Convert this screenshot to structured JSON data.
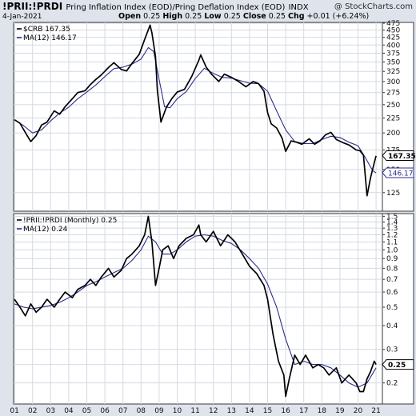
{
  "header": {
    "symbol": "!PRII:!PRDI",
    "description": "Pring Inflation Index (EOD)/Pring Deflation Index (EOD)",
    "exchange": "INDX",
    "copyright": "@ StockCharts.com",
    "date": "4-Jan-2021",
    "open_label": "Open",
    "open": "0.25",
    "high_label": "High",
    "high": "0.25",
    "low_label": "Low",
    "low": "0.25",
    "close_label": "Close",
    "close": "0.25",
    "chg_label": "Chg",
    "chg": "+0.01 (+6.24%)"
  },
  "chart_data": [
    {
      "type": "line",
      "panel": "top",
      "scale": "log",
      "ylim": [
        108,
        478
      ],
      "yticks": [
        125,
        150,
        175,
        200,
        225,
        250,
        275,
        300,
        325,
        350,
        375,
        400,
        425,
        450,
        475
      ],
      "legend": [
        "$CRB 167.35",
        "MA(12) 146.17"
      ],
      "value_tags": [
        {
          "label": "167.35",
          "value": 167.35,
          "style": "dark"
        },
        {
          "label": "146.17",
          "value": 146.17,
          "style": "light"
        }
      ],
      "grid": true,
      "series": [
        {
          "name": "$CRB",
          "color": "#000000",
          "x": [
            2001.0,
            2001.3,
            2001.7,
            2001.9,
            2002.2,
            2002.5,
            2002.8,
            2003.2,
            2003.5,
            2003.8,
            2004.2,
            2004.5,
            2004.9,
            2005.2,
            2005.5,
            2005.8,
            2006.2,
            2006.5,
            2006.9,
            2007.2,
            2007.5,
            2007.9,
            2008.2,
            2008.5,
            2008.6,
            2008.8,
            2008.9,
            2009.1,
            2009.4,
            2009.7,
            2010.0,
            2010.4,
            2010.8,
            2011.2,
            2011.3,
            2011.6,
            2011.9,
            2012.3,
            2012.6,
            2013.0,
            2013.4,
            2013.8,
            2014.2,
            2014.5,
            2014.8,
            2015.0,
            2015.2,
            2015.5,
            2015.8,
            2016.0,
            2016.3,
            2016.6,
            2016.9,
            2017.3,
            2017.6,
            2017.9,
            2018.2,
            2018.5,
            2018.8,
            2019.2,
            2019.5,
            2019.9,
            2020.1,
            2020.3,
            2020.5,
            2020.7,
            2020.9,
            2021.0
          ],
          "y": [
            222,
            216,
            196,
            187,
            196,
            213,
            218,
            238,
            232,
            246,
            262,
            275,
            279,
            293,
            305,
            316,
            335,
            348,
            330,
            326,
            346,
            372,
            418,
            468,
            440,
            365,
            280,
            218,
            245,
            262,
            276,
            282,
            312,
            355,
            370,
            336,
            318,
            300,
            318,
            310,
            300,
            288,
            300,
            295,
            278,
            235,
            215,
            208,
            192,
            173,
            188,
            186,
            183,
            191,
            183,
            188,
            197,
            201,
            190,
            185,
            182,
            175,
            174,
            168,
            122,
            141,
            158,
            167
          ]
        },
        {
          "name": "MA(12)",
          "color": "#2c2d8e",
          "x": [
            2001.0,
            2001.5,
            2002.0,
            2002.5,
            2003.0,
            2003.5,
            2004.0,
            2004.5,
            2005.0,
            2005.5,
            2006.0,
            2006.5,
            2007.0,
            2007.5,
            2008.0,
            2008.4,
            2008.7,
            2009.0,
            2009.3,
            2009.6,
            2010.0,
            2010.5,
            2011.0,
            2011.5,
            2012.0,
            2012.5,
            2013.0,
            2013.5,
            2014.0,
            2014.5,
            2015.0,
            2015.5,
            2016.0,
            2016.5,
            2017.0,
            2017.5,
            2018.0,
            2018.5,
            2019.0,
            2019.5,
            2020.0,
            2020.4,
            2020.8,
            2021.0
          ],
          "y": [
            222,
            212,
            200,
            205,
            220,
            234,
            245,
            262,
            276,
            292,
            312,
            332,
            336,
            344,
            358,
            392,
            380,
            305,
            246,
            244,
            262,
            277,
            307,
            333,
            320,
            310,
            308,
            302,
            296,
            295,
            278,
            238,
            205,
            187,
            184,
            184,
            190,
            195,
            193,
            186,
            181,
            165,
            149,
            146
          ]
        }
      ]
    },
    {
      "type": "line",
      "panel": "bottom",
      "scale": "log",
      "ylim": [
        0.155,
        1.55
      ],
      "yticks": [
        0.2,
        0.25,
        0.3,
        0.4,
        0.5,
        0.6,
        0.7,
        0.8,
        0.9,
        1.0,
        1.1,
        1.2,
        1.3,
        1.4,
        1.5
      ],
      "ytick_labels": [
        "0.2",
        "",
        "0.3",
        "0.4",
        "0.5",
        "0.6",
        "0.7",
        "0.8",
        "0.9",
        "1.0",
        "1.1",
        "1.2",
        "1.3",
        "1.4",
        "1.5"
      ],
      "xlabel_ticks": [
        "01",
        "02",
        "03",
        "04",
        "05",
        "06",
        "07",
        "08",
        "09",
        "10",
        "11",
        "12",
        "13",
        "14",
        "15",
        "16",
        "17",
        "18",
        "19",
        "20",
        "21"
      ],
      "legend": [
        "!PRII:!PRDI (Monthly) 0.25",
        "MA(12) 0.24"
      ],
      "value_tags": [
        {
          "label": "0.25",
          "value": 0.25,
          "style": "dark"
        }
      ],
      "grid": true,
      "series": [
        {
          "name": "!PRII:!PRDI (Monthly)",
          "color": "#000000",
          "x": [
            2001.0,
            2001.3,
            2001.6,
            2001.9,
            2002.2,
            2002.5,
            2002.8,
            2003.2,
            2003.5,
            2003.8,
            2004.2,
            2004.5,
            2004.9,
            2005.2,
            2005.5,
            2005.8,
            2006.2,
            2006.5,
            2006.9,
            2007.2,
            2007.5,
            2007.9,
            2008.2,
            2008.4,
            2008.6,
            2008.8,
            2009.0,
            2009.2,
            2009.5,
            2009.8,
            2010.1,
            2010.5,
            2010.9,
            2011.2,
            2011.3,
            2011.6,
            2012.0,
            2012.4,
            2012.8,
            2013.2,
            2013.6,
            2014.0,
            2014.4,
            2014.8,
            2015.0,
            2015.3,
            2015.6,
            2015.9,
            2016.0,
            2016.2,
            2016.5,
            2016.8,
            2017.1,
            2017.5,
            2017.8,
            2018.1,
            2018.4,
            2018.8,
            2019.1,
            2019.5,
            2019.9,
            2020.1,
            2020.3,
            2020.5,
            2020.7,
            2020.9,
            2021.0
          ],
          "y": [
            0.55,
            0.5,
            0.45,
            0.52,
            0.47,
            0.5,
            0.55,
            0.5,
            0.55,
            0.6,
            0.56,
            0.62,
            0.65,
            0.7,
            0.65,
            0.72,
            0.8,
            0.72,
            0.78,
            0.9,
            0.95,
            1.05,
            1.2,
            1.5,
            1.1,
            0.65,
            0.8,
            1.0,
            1.05,
            0.9,
            1.05,
            1.15,
            1.2,
            1.35,
            1.2,
            1.1,
            1.25,
            1.05,
            1.2,
            1.1,
            0.95,
            0.82,
            0.75,
            0.65,
            0.55,
            0.36,
            0.26,
            0.22,
            0.17,
            0.21,
            0.28,
            0.25,
            0.28,
            0.24,
            0.25,
            0.24,
            0.22,
            0.24,
            0.2,
            0.22,
            0.2,
            0.18,
            0.18,
            0.21,
            0.23,
            0.26,
            0.25
          ]
        },
        {
          "name": "MA(12)",
          "color": "#2c2d8e",
          "x": [
            2001.0,
            2001.5,
            2002.0,
            2002.5,
            2003.0,
            2003.5,
            2004.0,
            2004.5,
            2005.0,
            2005.5,
            2006.0,
            2006.5,
            2007.0,
            2007.5,
            2008.0,
            2008.4,
            2008.8,
            2009.2,
            2009.6,
            2010.0,
            2010.5,
            2011.0,
            2011.5,
            2012.0,
            2012.5,
            2013.0,
            2013.5,
            2014.0,
            2014.5,
            2015.0,
            2015.5,
            2016.0,
            2016.5,
            2017.0,
            2017.5,
            2018.0,
            2018.5,
            2019.0,
            2019.5,
            2020.0,
            2020.5,
            2021.0
          ],
          "y": [
            0.52,
            0.5,
            0.49,
            0.5,
            0.51,
            0.53,
            0.56,
            0.6,
            0.65,
            0.68,
            0.72,
            0.76,
            0.8,
            0.88,
            1.0,
            1.18,
            1.1,
            0.95,
            0.95,
            1.0,
            1.1,
            1.18,
            1.2,
            1.18,
            1.12,
            1.08,
            1.0,
            0.9,
            0.8,
            0.66,
            0.5,
            0.34,
            0.25,
            0.26,
            0.25,
            0.25,
            0.24,
            0.22,
            0.2,
            0.19,
            0.2,
            0.24
          ]
        }
      ]
    }
  ]
}
